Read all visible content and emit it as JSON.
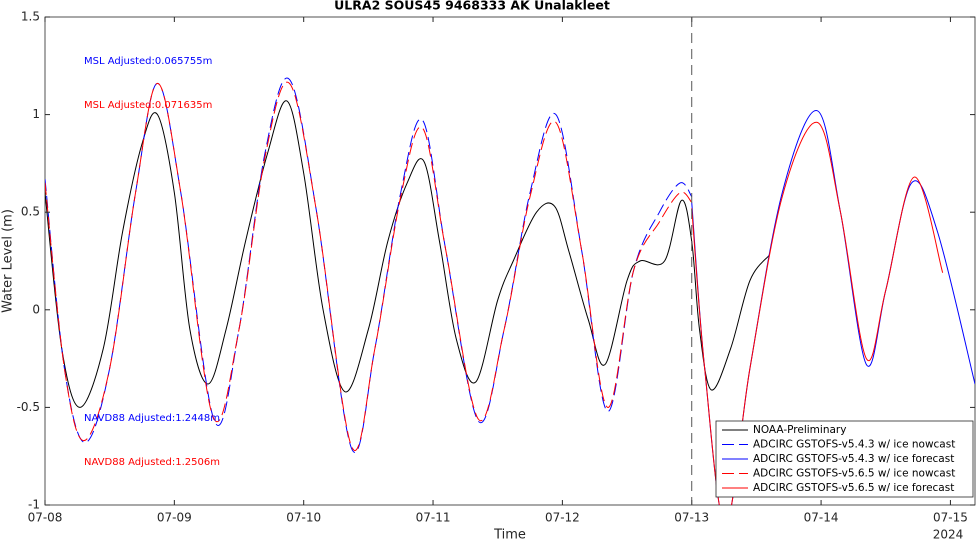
{
  "chart_data": {
    "type": "line",
    "title": "ULRA2 SOUS45 9468333 AK Unalakleet",
    "x_label": "Time",
    "x_sublabel": "2024",
    "y_label": "Water Level (m)",
    "xlim": [
      0,
      7.19
    ],
    "ylim": [
      -1,
      1.5
    ],
    "xticks": [
      {
        "value": 0,
        "label": "07-08"
      },
      {
        "value": 1,
        "label": "07-09"
      },
      {
        "value": 2,
        "label": "07-10"
      },
      {
        "value": 3,
        "label": "07-11"
      },
      {
        "value": 4,
        "label": "07-12"
      },
      {
        "value": 5,
        "label": "07-13"
      },
      {
        "value": 6,
        "label": "07-14"
      },
      {
        "value": 7,
        "label": "07-15"
      }
    ],
    "yticks": [
      -1,
      -0.5,
      0,
      0.5,
      1,
      1.5
    ],
    "vline_x": 5,
    "annotations": [
      {
        "text": "MSL Adjusted:0.065755m",
        "color": "#0000ff"
      },
      {
        "text": "MSL Adjusted:0.071635m",
        "color": "#ff0000"
      },
      {
        "text": "NAVD88 Adjusted:1.2448m",
        "color": "#0000ff"
      },
      {
        "text": "NAVD88 Adjusted:1.2506m",
        "color": "#ff0000"
      }
    ],
    "series": [
      {
        "name": "NOAA-Preliminary",
        "color": "#000000",
        "dashed": false,
        "x": [
          0,
          0.13,
          0.27,
          0.45,
          0.6,
          0.75,
          0.87,
          1.0,
          1.12,
          1.26,
          1.4,
          1.55,
          1.72,
          1.87,
          2.0,
          2.15,
          2.32,
          2.5,
          2.65,
          2.8,
          2.93,
          3.05,
          3.18,
          3.33,
          3.5,
          3.62,
          3.8,
          3.94,
          4.05,
          4.2,
          4.33,
          4.5,
          4.6,
          4.79,
          4.92,
          5.0,
          5.06,
          5.15,
          5.3,
          5.45,
          5.6
        ],
        "values": [
          0.6,
          -0.2,
          -0.5,
          -0.2,
          0.4,
          0.85,
          1.0,
          0.6,
          -0.1,
          -0.38,
          -0.1,
          0.35,
          0.8,
          1.07,
          0.7,
          0.0,
          -0.42,
          -0.1,
          0.35,
          0.65,
          0.76,
          0.35,
          -0.15,
          -0.37,
          0.05,
          0.25,
          0.5,
          0.53,
          0.3,
          -0.05,
          -0.28,
          0.15,
          0.25,
          0.25,
          0.56,
          0.35,
          -0.1,
          -0.41,
          -0.2,
          0.15,
          0.28
        ]
      },
      {
        "name": "ADCIRC GSTOFS-v5.4.3 w/ ice nowcast",
        "color": "#0000ff",
        "dashed": true,
        "x": [
          0,
          0.15,
          0.31,
          0.5,
          0.7,
          0.87,
          1.05,
          1.31,
          1.5,
          1.7,
          1.89,
          2.1,
          2.37,
          2.55,
          2.75,
          2.92,
          3.1,
          3.35,
          3.55,
          3.75,
          3.95,
          4.15,
          4.35,
          4.55,
          4.75,
          4.91,
          5.0
        ],
        "values": [
          0.67,
          -0.3,
          -0.68,
          -0.3,
          0.6,
          1.16,
          0.6,
          -0.57,
          -0.1,
          0.8,
          1.18,
          0.5,
          -0.71,
          -0.2,
          0.6,
          0.97,
          0.3,
          -0.57,
          -0.1,
          0.6,
          1.0,
          0.3,
          -0.52,
          0.2,
          0.5,
          0.65,
          0.58
        ]
      },
      {
        "name": "ADCIRC GSTOFS-v5.4.3 w/ ice forecast",
        "color": "#0000ff",
        "dashed": false,
        "x": [
          5.0,
          5.1,
          5.26,
          5.45,
          5.7,
          5.97,
          6.15,
          6.35,
          6.5,
          6.7,
          6.9,
          7.19
        ],
        "values": [
          0.55,
          -0.3,
          -1.1,
          -0.3,
          0.6,
          1.02,
          0.5,
          -0.28,
          0.1,
          0.65,
          0.4,
          -0.38
        ]
      },
      {
        "name": "ADCIRC GSTOFS-v5.6.5 w/ ice nowcast",
        "color": "#ff0000",
        "dashed": true,
        "x": [
          0,
          0.15,
          0.3,
          0.5,
          0.7,
          0.87,
          1.05,
          1.3,
          1.5,
          1.7,
          1.89,
          2.1,
          2.37,
          2.55,
          2.75,
          2.92,
          3.1,
          3.35,
          3.55,
          3.75,
          3.95,
          4.15,
          4.35,
          4.55,
          4.75,
          4.91,
          5.0
        ],
        "values": [
          0.65,
          -0.3,
          -0.67,
          -0.3,
          0.6,
          1.16,
          0.6,
          -0.55,
          -0.1,
          0.78,
          1.16,
          0.5,
          -0.7,
          -0.2,
          0.58,
          0.93,
          0.3,
          -0.56,
          -0.1,
          0.58,
          0.96,
          0.3,
          -0.5,
          0.2,
          0.45,
          0.6,
          0.55
        ]
      },
      {
        "name": "ADCIRC GSTOFS-v5.6.5 w/ ice forecast",
        "color": "#ff0000",
        "dashed": false,
        "x": [
          5.0,
          5.1,
          5.26,
          5.45,
          5.7,
          5.97,
          6.15,
          6.35,
          6.5,
          6.72,
          6.94
        ],
        "values": [
          0.52,
          -0.3,
          -1.1,
          -0.3,
          0.58,
          0.96,
          0.5,
          -0.25,
          0.1,
          0.68,
          0.19
        ]
      }
    ]
  }
}
